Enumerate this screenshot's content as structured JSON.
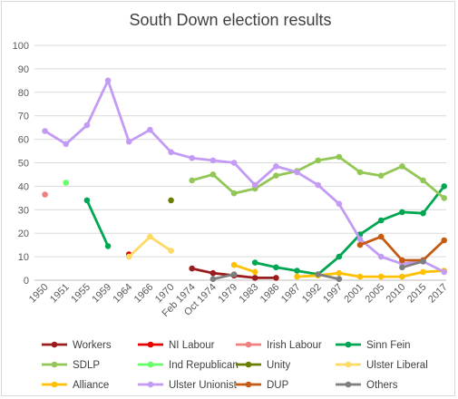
{
  "chart_data": {
    "type": "line",
    "title": "South Down election results",
    "xlabel": "",
    "ylabel": "",
    "ylim": [
      0,
      100
    ],
    "yticks": [
      0,
      10,
      20,
      30,
      40,
      50,
      60,
      70,
      80,
      90,
      100
    ],
    "grid": "horizontal",
    "legend_position": "bottom",
    "categories": [
      "1950",
      "1951",
      "1955",
      "1959",
      "1964",
      "1966",
      "1970",
      "Feb 1974",
      "Oct 1974",
      "1979",
      "1983",
      "1986",
      "1987",
      "1992",
      "1997",
      "2001",
      "2005",
      "2010",
      "2015",
      "2017"
    ],
    "series": [
      {
        "name": "Workers",
        "color": "#9b1c1c",
        "values": [
          null,
          null,
          null,
          null,
          null,
          null,
          null,
          5,
          3,
          2,
          1,
          1,
          null,
          null,
          null,
          null,
          null,
          null,
          null,
          null
        ]
      },
      {
        "name": "NI Labour",
        "color": "#e60000",
        "values": [
          null,
          null,
          null,
          null,
          11,
          null,
          null,
          null,
          null,
          null,
          null,
          null,
          null,
          null,
          null,
          null,
          null,
          null,
          null,
          null
        ]
      },
      {
        "name": "Irish Labour",
        "color": "#f08080",
        "values": [
          36.5,
          null,
          null,
          null,
          null,
          null,
          null,
          null,
          null,
          null,
          null,
          null,
          null,
          null,
          null,
          null,
          null,
          null,
          null,
          null
        ]
      },
      {
        "name": "Sinn Fein",
        "color": "#00a651",
        "values": [
          null,
          null,
          34,
          14.5,
          null,
          null,
          null,
          null,
          null,
          null,
          7.5,
          5.5,
          4,
          2.5,
          10,
          19.5,
          25.5,
          29,
          28.5,
          40
        ]
      },
      {
        "name": "SDLP",
        "color": "#92c755",
        "values": [
          null,
          null,
          null,
          null,
          null,
          null,
          null,
          42.5,
          45,
          37,
          39,
          44.5,
          46.5,
          51,
          52.5,
          46,
          44.5,
          48.5,
          42.5,
          35
        ]
      },
      {
        "name": "Ind Republican",
        "color": "#66ff66",
        "values": [
          null,
          41.5,
          null,
          null,
          null,
          null,
          null,
          null,
          null,
          null,
          null,
          null,
          null,
          null,
          null,
          null,
          null,
          null,
          null,
          null
        ]
      },
      {
        "name": "Unity",
        "color": "#6b7d00",
        "values": [
          null,
          null,
          null,
          null,
          null,
          null,
          34,
          null,
          null,
          null,
          null,
          null,
          null,
          null,
          null,
          null,
          null,
          null,
          null,
          null
        ]
      },
      {
        "name": "Ulster Liberal",
        "color": "#ffd966",
        "values": [
          null,
          null,
          null,
          null,
          10,
          18.5,
          12.5,
          null,
          null,
          null,
          null,
          null,
          null,
          null,
          null,
          null,
          null,
          null,
          null,
          null
        ]
      },
      {
        "name": "Alliance",
        "color": "#ffc000",
        "values": [
          null,
          null,
          null,
          null,
          null,
          null,
          null,
          null,
          null,
          6.5,
          3.5,
          null,
          1.5,
          2,
          3,
          1.5,
          1.5,
          1.5,
          3.5,
          4
        ]
      },
      {
        "name": "Ulster Unionist",
        "color": "#c39bf5",
        "values": [
          63.5,
          58,
          66,
          85,
          59,
          64,
          54.5,
          52,
          51,
          50,
          40.5,
          48.5,
          46,
          40.5,
          32.5,
          17.5,
          10,
          7,
          8,
          3.5
        ]
      },
      {
        "name": "DUP",
        "color": "#c55a11",
        "values": [
          null,
          null,
          null,
          null,
          null,
          null,
          null,
          null,
          null,
          null,
          null,
          null,
          null,
          null,
          null,
          15,
          18.5,
          8.5,
          8.5,
          17
        ]
      },
      {
        "name": "Others",
        "color": "#7f7f7f",
        "values": [
          null,
          null,
          null,
          null,
          null,
          null,
          null,
          null,
          0.5,
          2.5,
          null,
          null,
          null,
          2.5,
          0.5,
          null,
          null,
          5.5,
          8,
          null
        ]
      }
    ]
  }
}
